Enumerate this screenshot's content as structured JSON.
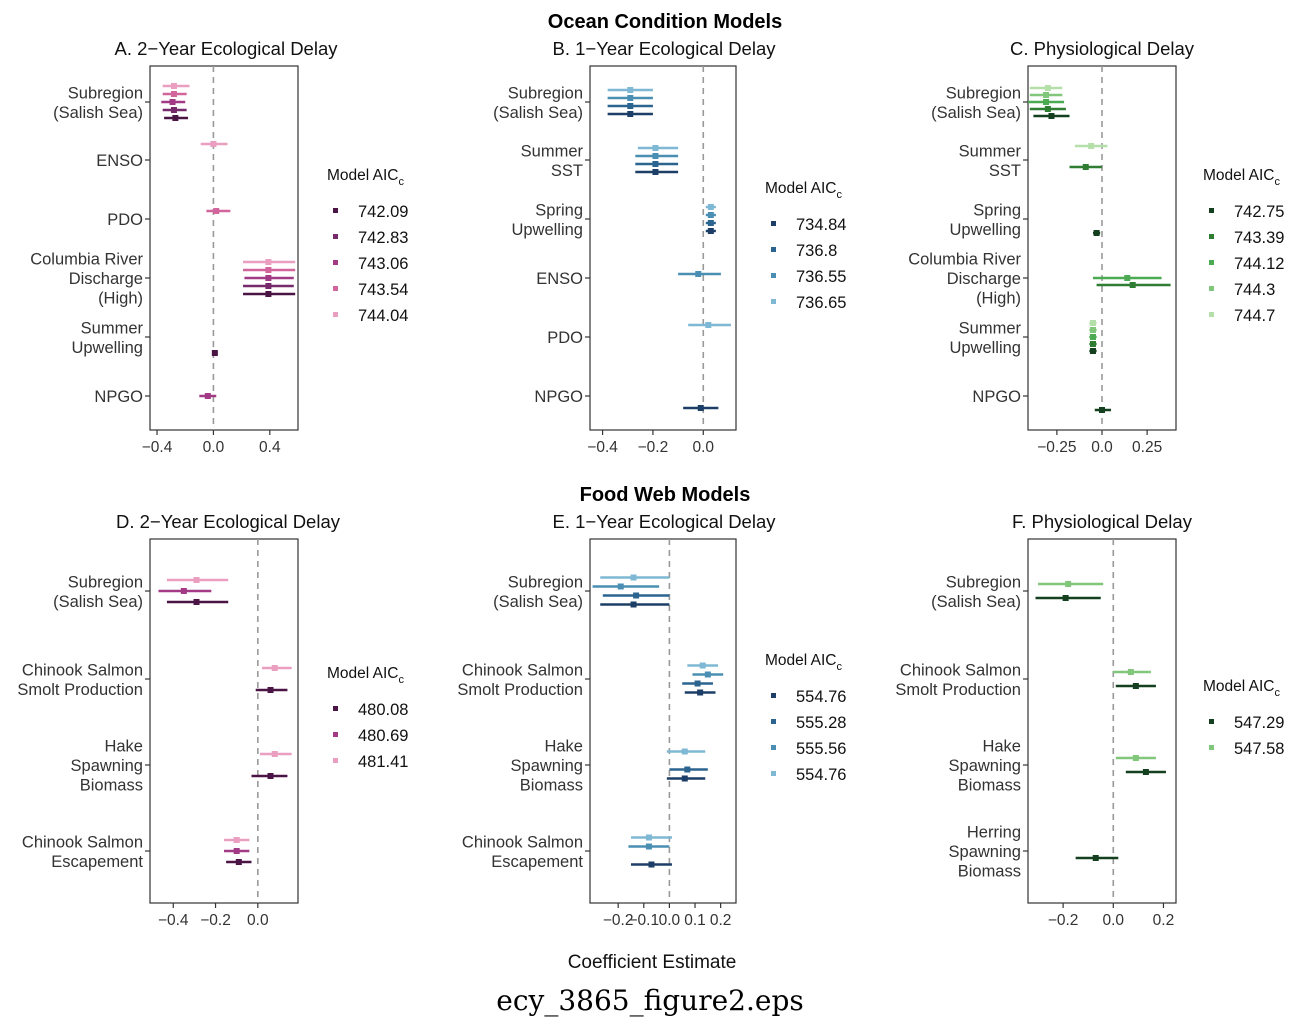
{
  "figure": {
    "row_titles": [
      "Ocean Condition Models",
      "Food Web Models"
    ],
    "xlabel": "Coefficient Estimate",
    "caption": "ecy_3865_figure2.eps",
    "legend_title_main": "Model AIC",
    "legend_title_sub": "c"
  },
  "chart_data": [
    {
      "type": "scatter",
      "title": "A. 2−Year Ecological Delay",
      "xlim": [
        -0.45,
        0.6
      ],
      "xticks": [
        -0.4,
        0.0,
        0.4
      ],
      "xtick_labels": [
        "−0.4",
        "0.0",
        "0.4"
      ],
      "categories": [
        [
          "Subregion",
          "(Salish Sea)"
        ],
        [
          "ENSO"
        ],
        [
          "PDO"
        ],
        [
          "Columbia River",
          "Discharge",
          "(High)"
        ],
        [
          "Summer",
          "Upwelling"
        ],
        [
          "NPGO"
        ]
      ],
      "legend_position": "right",
      "series": [
        {
          "name": "742.09",
          "color": "#4a1545",
          "estimates": [
            [
              -0.27,
              -0.35,
              -0.18
            ],
            null,
            null,
            [
              0.39,
              0.21,
              0.58
            ],
            [
              0.01,
              -0.01,
              0.03
            ],
            null
          ]
        },
        {
          "name": "742.83",
          "color": "#762a6b",
          "estimates": [
            [
              -0.28,
              -0.36,
              -0.19
            ],
            null,
            null,
            [
              0.39,
              0.21,
              0.57
            ],
            null,
            null
          ]
        },
        {
          "name": "743.06",
          "color": "#a23a86",
          "estimates": [
            [
              -0.29,
              -0.37,
              -0.2
            ],
            null,
            null,
            [
              0.39,
              0.22,
              0.57
            ],
            null,
            [
              -0.04,
              -0.1,
              0.02
            ]
          ]
        },
        {
          "name": "743.54",
          "color": "#d1659c",
          "estimates": [
            [
              -0.28,
              -0.36,
              -0.19
            ],
            null,
            [
              0.02,
              -0.05,
              0.12
            ],
            [
              0.39,
              0.21,
              0.58
            ],
            null,
            null
          ]
        },
        {
          "name": "744.04",
          "color": "#ea9ec0",
          "estimates": [
            [
              -0.28,
              -0.36,
              -0.17
            ],
            [
              0.0,
              -0.09,
              0.1
            ],
            null,
            [
              0.39,
              0.21,
              0.58
            ],
            null,
            null
          ]
        }
      ]
    },
    {
      "type": "scatter",
      "title": "B. 1−Year Ecological Delay",
      "xlim": [
        -0.45,
        0.13
      ],
      "xticks": [
        -0.4,
        -0.2,
        0.0
      ],
      "xtick_labels": [
        "−0.4",
        "−0.2",
        "0.0"
      ],
      "categories": [
        [
          "Subregion",
          "(Salish Sea)"
        ],
        [
          "Summer",
          "SST"
        ],
        [
          "Spring",
          "Upwelling"
        ],
        [
          "ENSO"
        ],
        [
          "PDO"
        ],
        [
          "NPGO"
        ]
      ],
      "legend_position": "right",
      "series": [
        {
          "name": "734.84",
          "color": "#1d3e66",
          "estimates": [
            [
              -0.29,
              -0.38,
              -0.2
            ],
            [
              -0.19,
              -0.27,
              -0.1
            ],
            [
              0.03,
              0.01,
              0.05
            ],
            null,
            null,
            [
              -0.01,
              -0.08,
              0.06
            ]
          ]
        },
        {
          "name": "736.8",
          "color": "#2c6490",
          "estimates": [
            [
              -0.29,
              -0.38,
              -0.2
            ],
            [
              -0.19,
              -0.27,
              -0.1
            ],
            [
              0.03,
              0.01,
              0.05
            ],
            null,
            null,
            null
          ]
        },
        {
          "name": "736.55",
          "color": "#4a8fb3",
          "estimates": [
            [
              -0.29,
              -0.38,
              -0.2
            ],
            [
              -0.19,
              -0.27,
              -0.1
            ],
            [
              0.03,
              0.01,
              0.05
            ],
            [
              -0.02,
              -0.1,
              0.07
            ],
            null,
            null
          ]
        },
        {
          "name": "736.65",
          "color": "#7fb8d4",
          "estimates": [
            [
              -0.29,
              -0.38,
              -0.2
            ],
            [
              -0.19,
              -0.26,
              -0.1
            ],
            [
              0.03,
              0.01,
              0.05
            ],
            null,
            [
              0.02,
              -0.06,
              0.11
            ],
            null
          ]
        }
      ]
    },
    {
      "type": "scatter",
      "title": "C. Physiological Delay",
      "xlim": [
        -0.41,
        0.41
      ],
      "xticks": [
        -0.25,
        0.0,
        0.25
      ],
      "xtick_labels": [
        "−0.25",
        "0.0",
        "0.25"
      ],
      "categories": [
        [
          "Subregion",
          "(Salish Sea)"
        ],
        [
          "Summer",
          "SST"
        ],
        [
          "Spring",
          "Upwelling"
        ],
        [
          "Columbia River",
          "Discharge",
          "(High)"
        ],
        [
          "Summer",
          "Upwelling"
        ],
        [
          "NPGO"
        ]
      ],
      "legend_position": "right",
      "series": [
        {
          "name": "742.75",
          "color": "#14401f",
          "estimates": [
            [
              -0.28,
              -0.38,
              -0.18
            ],
            null,
            [
              -0.03,
              -0.05,
              -0.01
            ],
            null,
            [
              -0.05,
              -0.07,
              -0.03
            ],
            [
              0.0,
              -0.04,
              0.05
            ]
          ]
        },
        {
          "name": "743.39",
          "color": "#2e7d32",
          "estimates": [
            [
              -0.3,
              -0.4,
              -0.2
            ],
            [
              -0.09,
              -0.18,
              0.0
            ],
            null,
            [
              0.17,
              -0.03,
              0.38
            ],
            [
              -0.05,
              -0.07,
              -0.03
            ],
            null
          ]
        },
        {
          "name": "744.12",
          "color": "#4cab52",
          "estimates": [
            [
              -0.31,
              -0.41,
              -0.21
            ],
            null,
            null,
            [
              0.14,
              -0.05,
              0.33
            ],
            [
              -0.05,
              -0.07,
              -0.03
            ],
            null
          ]
        },
        {
          "name": "744.3",
          "color": "#80c77c",
          "estimates": [
            [
              -0.31,
              -0.4,
              -0.22
            ],
            null,
            null,
            null,
            [
              -0.05,
              -0.07,
              -0.03
            ],
            null
          ]
        },
        {
          "name": "744.7",
          "color": "#b5dfa8",
          "estimates": [
            [
              -0.3,
              -0.4,
              -0.22
            ],
            [
              -0.06,
              -0.15,
              0.03
            ],
            null,
            null,
            [
              -0.05,
              -0.07,
              -0.03
            ],
            null
          ]
        }
      ]
    },
    {
      "type": "scatter",
      "title": "D. 2−Year Ecological Delay",
      "xlim": [
        -0.51,
        0.19
      ],
      "xticks": [
        -0.4,
        -0.2,
        0.0
      ],
      "xtick_labels": [
        "−0.4",
        "−0.2",
        "0.0"
      ],
      "categories": [
        [
          "Subregion",
          "(Salish Sea)"
        ],
        [
          "Chinook Salmon",
          "Smolt Production"
        ],
        [
          "Hake",
          "Spawning",
          "Biomass"
        ],
        [
          "Chinook Salmon",
          "Escapement"
        ]
      ],
      "legend_position": "right",
      "series": [
        {
          "name": "480.08",
          "color": "#4a1545",
          "estimates": [
            [
              -0.29,
              -0.43,
              -0.14
            ],
            [
              0.06,
              -0.01,
              0.14
            ],
            [
              0.06,
              -0.03,
              0.14
            ],
            [
              -0.09,
              -0.15,
              -0.03
            ]
          ]
        },
        {
          "name": "480.69",
          "color": "#a23a86",
          "estimates": [
            [
              -0.35,
              -0.47,
              -0.22
            ],
            null,
            null,
            [
              -0.1,
              -0.16,
              -0.04
            ]
          ]
        },
        {
          "name": "481.41",
          "color": "#ea9ec0",
          "estimates": [
            [
              -0.29,
              -0.43,
              -0.14
            ],
            [
              0.08,
              0.02,
              0.16
            ],
            [
              0.08,
              0.01,
              0.16
            ],
            [
              -0.1,
              -0.16,
              -0.04
            ]
          ]
        }
      ]
    },
    {
      "type": "scatter",
      "title": "E. 1−Year Ecological Delay",
      "xlim": [
        -0.31,
        0.26
      ],
      "xticks": [
        -0.2,
        -0.1,
        0.0,
        0.1,
        0.2
      ],
      "xtick_labels": [
        "−0.2",
        "−0.1",
        "0.0",
        "0.1",
        "0.2"
      ],
      "categories": [
        [
          "Subregion",
          "(Salish Sea)"
        ],
        [
          "Chinook Salmon",
          "Smolt Production"
        ],
        [
          "Hake",
          "Spawning",
          "Biomass"
        ],
        [
          "Chinook Salmon",
          "Escapement"
        ]
      ],
      "legend_position": "right",
      "series": [
        {
          "name": "554.76",
          "color": "#1d3e66",
          "estimates": [
            [
              -0.14,
              -0.27,
              0.0
            ],
            [
              0.12,
              0.06,
              0.18
            ],
            [
              0.06,
              -0.01,
              0.14
            ],
            [
              -0.07,
              -0.15,
              0.01
            ]
          ]
        },
        {
          "name": "555.28",
          "color": "#2c6490",
          "estimates": [
            [
              -0.13,
              -0.26,
              0.0
            ],
            [
              0.11,
              0.05,
              0.17
            ],
            [
              0.07,
              0.0,
              0.15
            ],
            null
          ]
        },
        {
          "name": "555.56",
          "color": "#4a8fb3",
          "estimates": [
            [
              -0.19,
              -0.3,
              -0.04
            ],
            [
              0.15,
              0.09,
              0.21
            ],
            null,
            [
              -0.08,
              -0.16,
              0.0
            ]
          ]
        },
        {
          "name": "554.76",
          "color": "#7fb8d4",
          "estimates": [
            [
              -0.14,
              -0.27,
              0.0
            ],
            [
              0.13,
              0.07,
              0.19
            ],
            [
              0.06,
              -0.01,
              0.14
            ],
            [
              -0.08,
              -0.15,
              0.01
            ]
          ]
        }
      ]
    },
    {
      "type": "scatter",
      "title": "F. Physiological Delay",
      "xlim": [
        -0.34,
        0.25
      ],
      "xticks": [
        -0.2,
        0.0,
        0.2
      ],
      "xtick_labels": [
        "−0.2",
        "0.0",
        "0.2"
      ],
      "categories": [
        [
          "Subregion",
          "(Salish Sea)"
        ],
        [
          "Chinook Salmon",
          "Smolt Production"
        ],
        [
          "Hake",
          "Spawning",
          "Biomass"
        ],
        [
          "Herring",
          "Spawning",
          "Biomass"
        ]
      ],
      "legend_position": "right",
      "series": [
        {
          "name": "547.29",
          "color": "#14401f",
          "estimates": [
            [
              -0.19,
              -0.31,
              -0.05
            ],
            [
              0.09,
              0.01,
              0.17
            ],
            [
              0.13,
              0.05,
              0.21
            ],
            [
              -0.07,
              -0.15,
              0.02
            ]
          ]
        },
        {
          "name": "547.58",
          "color": "#80c77c",
          "estimates": [
            [
              -0.18,
              -0.3,
              -0.04
            ],
            [
              0.07,
              0.0,
              0.15
            ],
            [
              0.09,
              0.01,
              0.17
            ],
            null
          ]
        }
      ]
    }
  ]
}
